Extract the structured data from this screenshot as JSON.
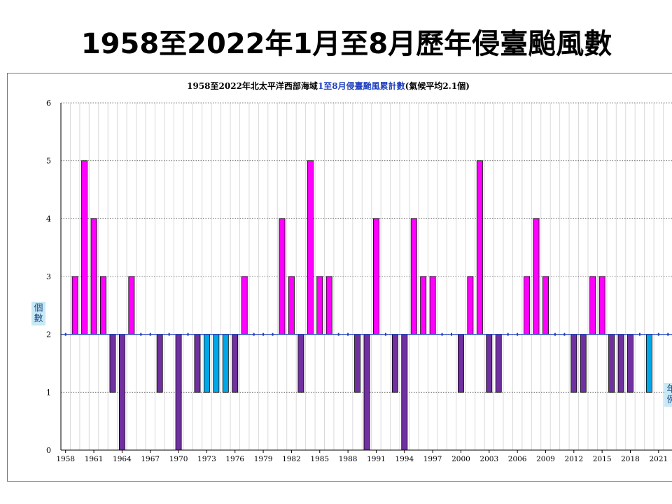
{
  "slide": {
    "title": "1958至2022年1月至8月歷年侵臺颱風數"
  },
  "chart_data": {
    "type": "bar",
    "title_parts": {
      "a": "1958至2022年北太平洋西部海域",
      "b": "1至8月侵臺颱風累計數",
      "c": "(氣候平均2.1個)"
    },
    "ylabel_chars": [
      "個",
      "數"
    ],
    "right_label_chars": [
      "年",
      "例"
    ],
    "baseline": 2,
    "ylim": [
      0,
      6
    ],
    "yticks": [
      0,
      1,
      2,
      3,
      4,
      5,
      6
    ],
    "grid": true,
    "x": [
      1958,
      1959,
      1960,
      1961,
      1962,
      1963,
      1964,
      1965,
      1966,
      1967,
      1968,
      1969,
      1970,
      1971,
      1972,
      1973,
      1974,
      1975,
      1976,
      1977,
      1978,
      1979,
      1980,
      1981,
      1982,
      1983,
      1984,
      1985,
      1986,
      1987,
      1988,
      1989,
      1990,
      1991,
      1992,
      1993,
      1994,
      1995,
      1996,
      1997,
      1998,
      1999,
      2000,
      2001,
      2002,
      2003,
      2004,
      2005,
      2006,
      2007,
      2008,
      2009,
      2010,
      2011,
      2012,
      2013,
      2014,
      2015,
      2016,
      2017,
      2018,
      2019,
      2020,
      2021,
      2022
    ],
    "values": [
      2,
      3,
      5,
      4,
      3,
      1,
      0,
      3,
      2,
      2,
      1,
      2,
      0,
      2,
      1,
      1,
      1,
      1,
      1,
      3,
      2,
      2,
      2,
      4,
      3,
      1,
      5,
      3,
      3,
      2,
      2,
      1,
      0,
      4,
      2,
      1,
      0,
      4,
      3,
      3,
      2,
      2,
      1,
      3,
      5,
      1,
      1,
      2,
      2,
      3,
      4,
      3,
      2,
      2,
      1,
      1,
      3,
      3,
      1,
      1,
      1,
      2,
      1,
      2,
      2
    ],
    "xtick_labels": [
      "1958",
      "1961",
      "1964",
      "1967",
      "1970",
      "1973",
      "1976",
      "1979",
      "1982",
      "1985",
      "1988",
      "1991",
      "1994",
      "1997",
      "2000",
      "2003",
      "2006",
      "2009",
      "2012",
      "2015",
      "2018",
      "2021"
    ],
    "colors": {
      "above": "#ff00ff",
      "below": "#7030a0",
      "below_alt": "#00a8e8",
      "below_white": "#ffffff",
      "baseline": "#1f3fbf",
      "title_a": "#000000",
      "title_b": "#1f3fbf"
    },
    "alt_color_years": [
      1973,
      1974,
      1975,
      1999,
      2020,
      2021,
      2022
    ],
    "white_bar_years": [
      2010
    ]
  }
}
